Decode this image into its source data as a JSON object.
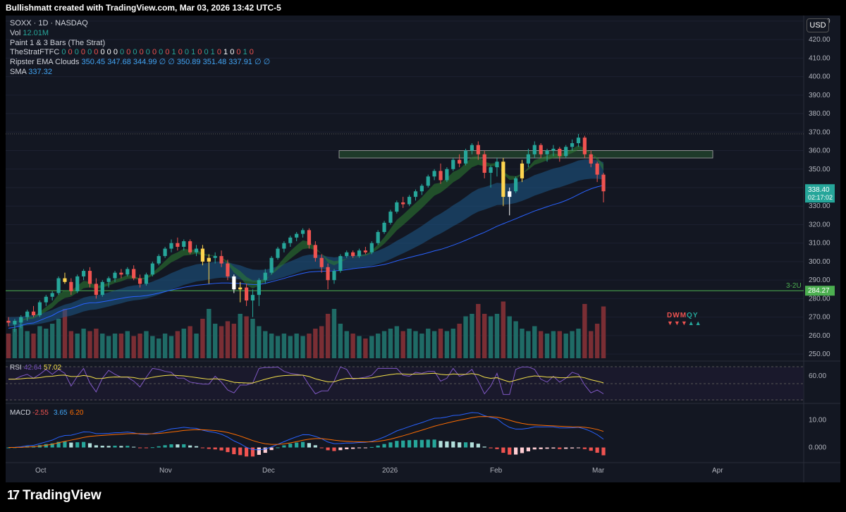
{
  "header": {
    "attribution": "Bullishmatt created with TradingView.com, Mar 03, 2026 13:42 UTC-5"
  },
  "legend": {
    "symbol": "SOXX · 1D · NASDAQ",
    "vol_label": "Vol",
    "vol_value": "12.01M",
    "paint_label": "Paint 1 & 3 Bars (The Strat)",
    "strat_label": "TheStratFTFC",
    "strat_values": [
      "0",
      "0",
      "0",
      "0",
      "0",
      "0",
      "0",
      "0",
      "0",
      "0",
      "0",
      "0",
      "0",
      "0",
      "0",
      "0",
      "0",
      "1",
      "0",
      "0",
      "1",
      "0",
      "0",
      "1",
      "0",
      "1",
      "0",
      "0",
      "1",
      "0"
    ],
    "strat_colors": [
      "g",
      "r",
      "g",
      "r",
      "g",
      "r",
      "w",
      "w",
      "w",
      "g",
      "r",
      "g",
      "r",
      "g",
      "r",
      "g",
      "r",
      "g",
      "r",
      "g",
      "g",
      "r",
      "g",
      "g",
      "r",
      "w",
      "w",
      "r",
      "g",
      "r"
    ],
    "ripster_label": "Ripster EMA Clouds",
    "ripster_values": [
      "350.45",
      "347.68",
      "344.99",
      "∅",
      "∅",
      "350.89",
      "351.48",
      "337.91",
      "∅",
      "∅"
    ],
    "sma_label": "SMA",
    "sma_value": "337.32"
  },
  "currency": "USD",
  "price_axis": {
    "ticks": [
      "430.00",
      "420.00",
      "410.00",
      "400.00",
      "390.00",
      "380.00",
      "370.00",
      "360.00",
      "350.00",
      "340.00",
      "330.00",
      "320.00",
      "310.00",
      "300.00",
      "290.00",
      "280.00",
      "270.00",
      "260.00",
      "250.00"
    ],
    "current_price": "338.40",
    "countdown": "02:17:02",
    "level_price": "284.27",
    "level_label": "3-2U"
  },
  "time_axis": {
    "labels": [
      "Oct",
      "Nov",
      "Dec",
      "2026",
      "Feb",
      "Mar",
      "Apr"
    ]
  },
  "rsi": {
    "label": "RSI",
    "value1": "42.64",
    "value2": "57.02",
    "tick": "60.00"
  },
  "macd": {
    "label": "MACD",
    "value1": "-2.55",
    "value2": "3.65",
    "value3": "6.20",
    "ticks": [
      "10.00",
      "0.000"
    ]
  },
  "ftfc_box": {
    "letters": "DWMQY",
    "colors": {
      "D": "#ef5350",
      "W": "#ef5350",
      "M": "#ef5350",
      "Q": "#26a69a",
      "Y": "#26a69a"
    },
    "arrows": "▼▼▼▲▲"
  },
  "brand": {
    "name": "TradingView"
  },
  "colors": {
    "up": "#26a69a",
    "down": "#ef5350",
    "bg": "#131722",
    "sma": "#2962ff",
    "rsi": "#7e57c2",
    "macd": "#2962ff",
    "signal": "#ff6d00",
    "level": "#4caf50",
    "zone": "#1e3a2a"
  },
  "chart_data": {
    "type": "candlestick",
    "symbol": "SOXX",
    "interval": "1D",
    "exchange": "NASDAQ",
    "ylim": [
      247,
      433
    ],
    "resistance_zone": [
      356,
      360
    ],
    "support_line": 284.27,
    "top_line": 369,
    "ohlc": [
      [
        268,
        270,
        265,
        267
      ],
      [
        266,
        269,
        262,
        268
      ],
      [
        267,
        271,
        264,
        270
      ],
      [
        270,
        274,
        268,
        273
      ],
      [
        273,
        276,
        270,
        271
      ],
      [
        271,
        279,
        270,
        278
      ],
      [
        278,
        282,
        276,
        281
      ],
      [
        281,
        284,
        279,
        283
      ],
      [
        283,
        292,
        282,
        291
      ],
      [
        291,
        294,
        288,
        289
      ],
      [
        289,
        291,
        282,
        284
      ],
      [
        284,
        293,
        283,
        292
      ],
      [
        292,
        296,
        290,
        295
      ],
      [
        295,
        297,
        286,
        288
      ],
      [
        288,
        291,
        280,
        282
      ],
      [
        282,
        290,
        281,
        289
      ],
      [
        289,
        292,
        286,
        291
      ],
      [
        291,
        295,
        289,
        294
      ],
      [
        294,
        296,
        291,
        293
      ],
      [
        293,
        297,
        292,
        296
      ],
      [
        296,
        298,
        290,
        291
      ],
      [
        291,
        293,
        286,
        288
      ],
      [
        288,
        294,
        287,
        293
      ],
      [
        293,
        300,
        292,
        299
      ],
      [
        299,
        304,
        298,
        303
      ],
      [
        303,
        308,
        302,
        307
      ],
      [
        307,
        312,
        305,
        310
      ],
      [
        310,
        313,
        306,
        308
      ],
      [
        308,
        312,
        306,
        311
      ],
      [
        311,
        312,
        304,
        305
      ],
      [
        305,
        309,
        303,
        307
      ],
      [
        307,
        309,
        298,
        300
      ],
      [
        300,
        304,
        288,
        302
      ],
      [
        302,
        305,
        299,
        303
      ],
      [
        303,
        306,
        297,
        299
      ],
      [
        299,
        301,
        290,
        292
      ],
      [
        292,
        293,
        283,
        285
      ],
      [
        285,
        289,
        278,
        286
      ],
      [
        286,
        288,
        276,
        279
      ],
      [
        279,
        285,
        270,
        282
      ],
      [
        282,
        291,
        276,
        290
      ],
      [
        290,
        296,
        288,
        294
      ],
      [
        294,
        303,
        293,
        302
      ],
      [
        302,
        308,
        301,
        307
      ],
      [
        307,
        311,
        305,
        310
      ],
      [
        310,
        314,
        308,
        313
      ],
      [
        313,
        316,
        311,
        315
      ],
      [
        315,
        318,
        313,
        317
      ],
      [
        317,
        318,
        307,
        309
      ],
      [
        309,
        311,
        300,
        302
      ],
      [
        302,
        304,
        294,
        297
      ],
      [
        297,
        299,
        285,
        290
      ],
      [
        290,
        296,
        288,
        295
      ],
      [
        295,
        304,
        294,
        303
      ],
      [
        303,
        306,
        302,
        305
      ],
      [
        305,
        306,
        302,
        303
      ],
      [
        303,
        307,
        302,
        306
      ],
      [
        306,
        308,
        304,
        305
      ],
      [
        305,
        311,
        304,
        310
      ],
      [
        310,
        317,
        309,
        316
      ],
      [
        316,
        322,
        315,
        321
      ],
      [
        321,
        328,
        320,
        327
      ],
      [
        327,
        333,
        326,
        332
      ],
      [
        332,
        335,
        329,
        331
      ],
      [
        331,
        336,
        330,
        335
      ],
      [
        335,
        339,
        333,
        338
      ],
      [
        338,
        342,
        336,
        341
      ],
      [
        341,
        347,
        340,
        346
      ],
      [
        346,
        350,
        344,
        349
      ],
      [
        349,
        353,
        342,
        344
      ],
      [
        344,
        351,
        343,
        350
      ],
      [
        350,
        356,
        349,
        355
      ],
      [
        355,
        358,
        351,
        353
      ],
      [
        353,
        361,
        352,
        360
      ],
      [
        360,
        364,
        358,
        363
      ],
      [
        363,
        365,
        355,
        358
      ],
      [
        358,
        360,
        345,
        348
      ],
      [
        348,
        352,
        340,
        351
      ],
      [
        351,
        356,
        346,
        354
      ],
      [
        354,
        356,
        330,
        335
      ],
      [
        335,
        340,
        325,
        338
      ],
      [
        338,
        346,
        337,
        345
      ],
      [
        345,
        355,
        343,
        353
      ],
      [
        353,
        361,
        351,
        358
      ],
      [
        358,
        365,
        356,
        363
      ],
      [
        363,
        364,
        356,
        358
      ],
      [
        358,
        361,
        354,
        360
      ],
      [
        360,
        363,
        357,
        361
      ],
      [
        361,
        362,
        354,
        357
      ],
      [
        357,
        363,
        356,
        362
      ],
      [
        362,
        366,
        360,
        364
      ],
      [
        364,
        369,
        362,
        367
      ],
      [
        367,
        368,
        356,
        358
      ],
      [
        358,
        360,
        351,
        353
      ],
      [
        353,
        354,
        343,
        347
      ],
      [
        347,
        348,
        332,
        338
      ]
    ],
    "volume_relative": [
      0.5,
      0.6,
      0.7,
      0.55,
      0.5,
      0.65,
      0.6,
      0.7,
      0.8,
      1.0,
      0.55,
      0.5,
      0.6,
      0.55,
      0.6,
      0.5,
      0.45,
      0.5,
      0.5,
      0.55,
      0.45,
      0.5,
      0.55,
      0.45,
      0.4,
      0.5,
      0.45,
      0.55,
      0.6,
      0.65,
      0.5,
      0.8,
      1.0,
      0.7,
      0.65,
      0.75,
      0.7,
      0.9,
      0.85,
      0.8,
      0.65,
      0.55,
      0.5,
      0.45,
      0.5,
      0.45,
      0.5,
      0.45,
      0.5,
      0.6,
      0.65,
      0.9,
      1.0,
      0.7,
      0.55,
      0.5,
      0.45,
      0.4,
      0.45,
      0.5,
      0.55,
      0.6,
      0.65,
      0.55,
      0.6,
      0.55,
      0.5,
      0.6,
      0.55,
      0.6,
      0.55,
      0.6,
      0.7,
      0.85,
      0.9,
      1.1,
      0.9,
      0.85,
      0.9,
      1.15,
      0.85,
      0.75,
      0.6,
      0.55,
      0.65,
      0.55,
      0.5,
      0.55,
      0.55,
      0.5,
      0.55,
      0.6,
      1.1,
      0.55,
      0.7,
      1.05
    ],
    "rsi_ylim": [
      20,
      80
    ],
    "macd_ylim": [
      -5,
      14
    ],
    "series": [
      {
        "name": "SMA",
        "values_at": "computed"
      },
      {
        "name": "RSI"
      },
      {
        "name": "MACD"
      }
    ]
  }
}
